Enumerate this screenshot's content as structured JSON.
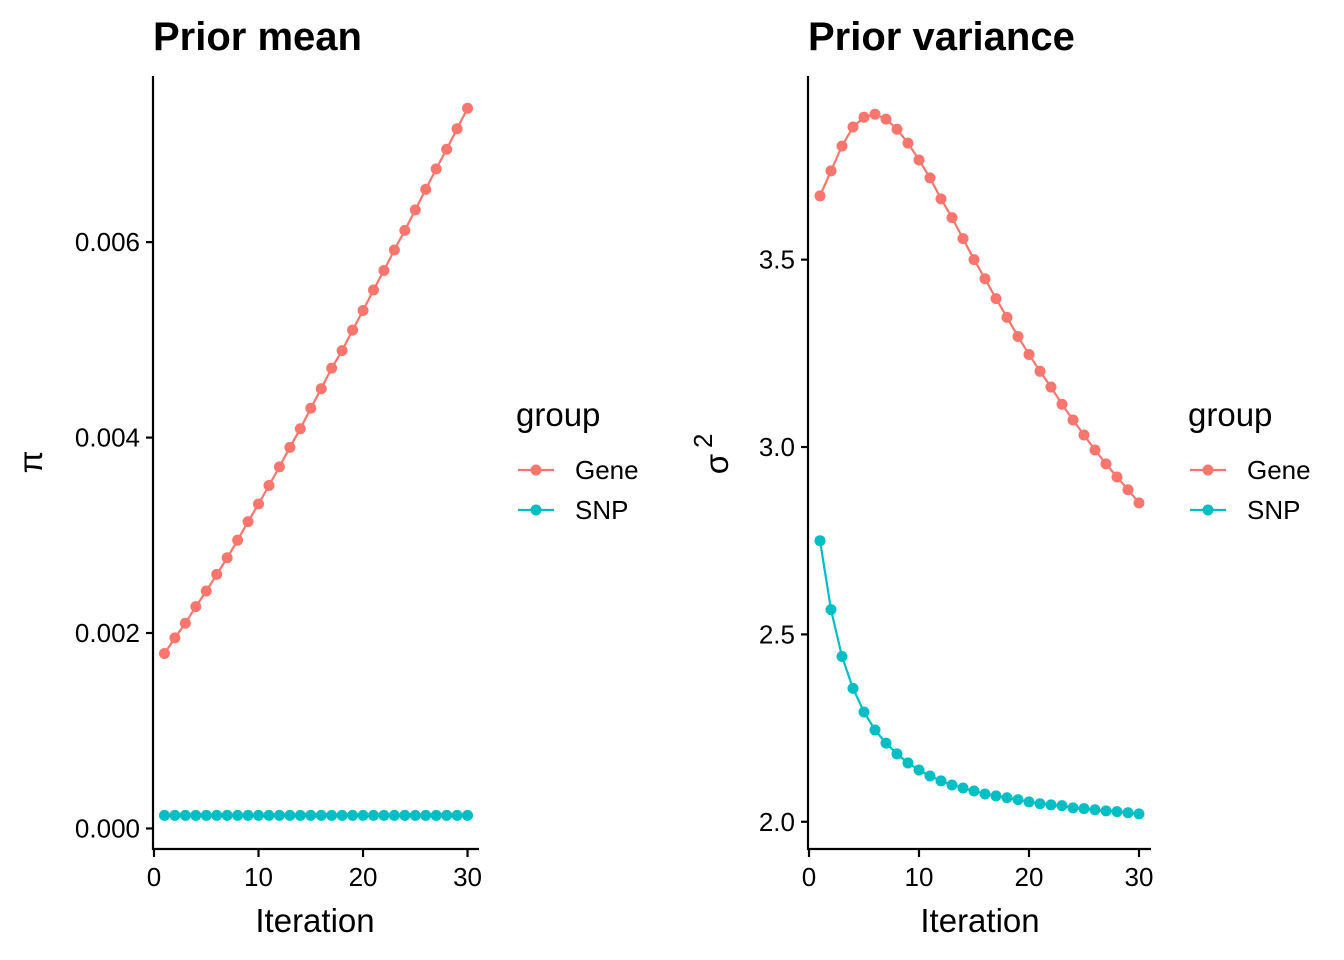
{
  "chart_data": [
    {
      "type": "line",
      "title": "Prior mean",
      "xlabel": "Iteration",
      "ylabel": "π",
      "xlim": [
        0,
        31
      ],
      "ylim": [
        -0.0002,
        0.0077
      ],
      "xticks": [
        0,
        10,
        20,
        30
      ],
      "xtick_labels": [
        "0",
        "10",
        "20",
        "30"
      ],
      "yticks": [
        0.0,
        0.002,
        0.004,
        0.006
      ],
      "ytick_labels": [
        "0.000",
        "0.002",
        "0.004",
        "0.006"
      ],
      "grid": false,
      "legend": {
        "title": "group",
        "position": "right"
      },
      "x": [
        1,
        2,
        3,
        4,
        5,
        6,
        7,
        8,
        9,
        10,
        11,
        12,
        13,
        14,
        15,
        16,
        17,
        18,
        19,
        20,
        21,
        22,
        23,
        24,
        25,
        26,
        27,
        28,
        29,
        30
      ],
      "series": [
        {
          "name": "Gene",
          "color": "#F8766D",
          "values": [
            0.00179,
            0.00195,
            0.0021,
            0.00227,
            0.00243,
            0.0026,
            0.00277,
            0.00295,
            0.00314,
            0.00332,
            0.00351,
            0.0037,
            0.0039,
            0.00409,
            0.0043,
            0.0045,
            0.00471,
            0.00489,
            0.0051,
            0.0053,
            0.00551,
            0.00571,
            0.00592,
            0.00612,
            0.00633,
            0.00654,
            0.00675,
            0.00695,
            0.00716,
            0.00737
          ]
        },
        {
          "name": "SNP",
          "color": "#00BFC4",
          "values": [
            0.000134,
            0.000134,
            0.000134,
            0.000134,
            0.000134,
            0.000134,
            0.000134,
            0.000134,
            0.000134,
            0.000134,
            0.000134,
            0.000134,
            0.000134,
            0.000134,
            0.000134,
            0.000134,
            0.000134,
            0.000134,
            0.000134,
            0.000134,
            0.000134,
            0.000134,
            0.000134,
            0.000134,
            0.000134,
            0.000134,
            0.000134,
            0.000134,
            0.000134,
            0.000134
          ]
        }
      ]
    },
    {
      "type": "line",
      "title": "Prior variance",
      "xlabel": "Iteration",
      "ylabel": "σ²",
      "ylabel_base": "σ",
      "ylabel_sup": "2",
      "xlim": [
        0,
        31
      ],
      "ylim": [
        1.93,
        3.99
      ],
      "xticks": [
        0,
        10,
        20,
        30
      ],
      "xtick_labels": [
        "0",
        "10",
        "20",
        "30"
      ],
      "yticks": [
        2.0,
        2.5,
        3.0,
        3.5
      ],
      "ytick_labels": [
        "2.0",
        "2.5",
        "3.0",
        "3.5"
      ],
      "grid": false,
      "legend": {
        "title": "group",
        "position": "right"
      },
      "x": [
        1,
        2,
        3,
        4,
        5,
        6,
        7,
        8,
        9,
        10,
        11,
        12,
        13,
        14,
        15,
        16,
        17,
        18,
        19,
        20,
        21,
        22,
        23,
        24,
        25,
        26,
        27,
        28,
        29,
        30
      ],
      "series": [
        {
          "name": "Gene",
          "color": "#F8766D",
          "values": [
            3.67,
            3.737,
            3.803,
            3.854,
            3.88,
            3.888,
            3.875,
            3.848,
            3.811,
            3.766,
            3.718,
            3.662,
            3.612,
            3.556,
            3.5,
            3.449,
            3.396,
            3.346,
            3.295,
            3.247,
            3.202,
            3.16,
            3.114,
            3.072,
            3.032,
            2.992,
            2.955,
            2.92,
            2.886,
            2.851
          ]
        },
        {
          "name": "SNP",
          "color": "#00BFC4",
          "values": [
            2.75,
            2.566,
            2.441,
            2.356,
            2.293,
            2.245,
            2.21,
            2.181,
            2.157,
            2.138,
            2.122,
            2.109,
            2.098,
            2.09,
            2.082,
            2.074,
            2.069,
            2.064,
            2.059,
            2.053,
            2.048,
            2.045,
            2.043,
            2.037,
            2.035,
            2.032,
            2.029,
            2.027,
            2.024,
            2.021
          ]
        }
      ]
    }
  ]
}
